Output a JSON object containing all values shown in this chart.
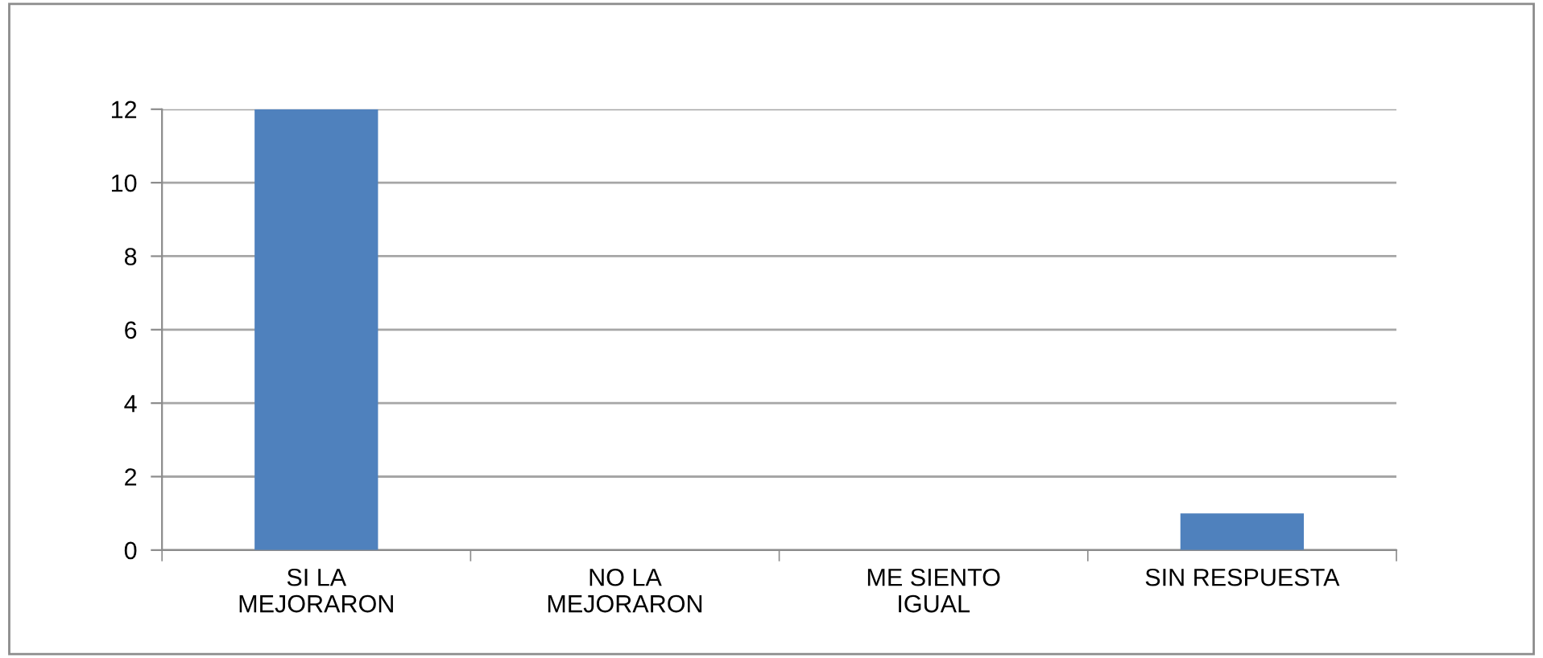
{
  "chart_data": {
    "type": "bar",
    "categories": [
      "SI LA\nMEJORARON",
      "NO LA\nMEJORARON",
      "ME SIENTO\nIGUAL",
      "SIN RESPUESTA"
    ],
    "values": [
      12,
      0,
      0,
      1
    ],
    "color": "#4f81bd",
    "ylim": [
      0,
      12
    ],
    "yticks": [
      0,
      2,
      4,
      6,
      8,
      10,
      12
    ],
    "grid": "y",
    "legend": false
  }
}
